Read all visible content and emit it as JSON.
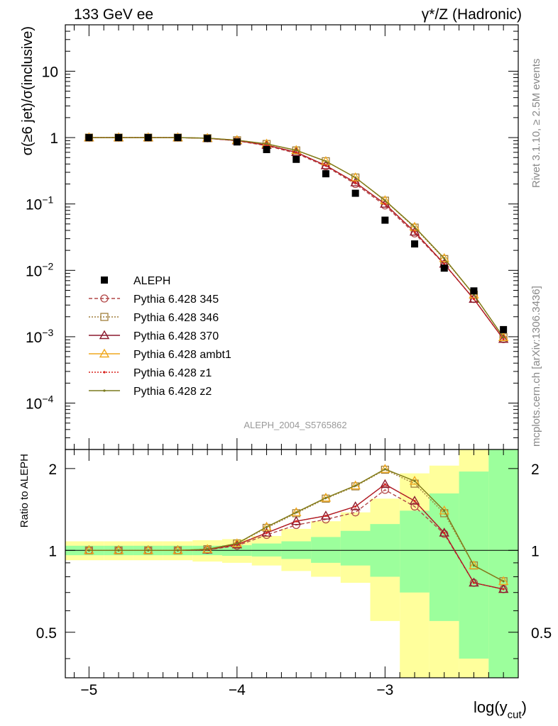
{
  "header": {
    "left": "133 GeV ee",
    "right": "γ*/Z (Hadronic)"
  },
  "side_labels": {
    "top": "Rivet 3.1.10, ≥ 2.5M events",
    "bottom": "mcplots.cern.ch [arXiv:1306.3436]"
  },
  "watermark": "ALEPH_2004_S5765862",
  "chart_data": [
    {
      "type": "line",
      "panel": "main",
      "ylabel": "σ(≥6 jet)/σ(inclusive)",
      "y_scale": "log",
      "ylim": [
        2e-05,
        50
      ],
      "xlim": [
        -5.16,
        -2.1
      ],
      "y_ticks": [
        {
          "v": 10,
          "base": "10",
          "exp": ""
        },
        {
          "v": 1,
          "base": "1",
          "exp": ""
        },
        {
          "v": 0.1,
          "base": "10",
          "exp": "−1"
        },
        {
          "v": 0.01,
          "base": "10",
          "exp": "−2"
        },
        {
          "v": 0.001,
          "base": "10",
          "exp": "−3"
        },
        {
          "v": 0.0001,
          "base": "10",
          "exp": "−4"
        }
      ],
      "x": [
        -5.0,
        -4.8,
        -4.6,
        -4.4,
        -4.2,
        -4.0,
        -3.8,
        -3.6,
        -3.4,
        -3.2,
        -3.0,
        -2.8,
        -2.6,
        -2.4,
        -2.2
      ],
      "data_series": {
        "name": "ALEPH",
        "values": [
          1.0,
          1.0,
          1.0,
          1.0,
          0.97,
          0.86,
          0.66,
          0.47,
          0.285,
          0.145,
          0.057,
          0.025,
          0.0108,
          0.0049,
          0.00128
        ]
      },
      "series": [
        {
          "name": "Pythia 6.428 345",
          "color": "#b24747",
          "dash": "5,3",
          "marker": "circle",
          "values": [
            1.0,
            1.0,
            1.0,
            1.0,
            0.975,
            0.895,
            0.755,
            0.58,
            0.37,
            0.2,
            0.095,
            0.036,
            0.0124,
            0.0037,
            0.00092
          ]
        },
        {
          "name": "Pythia 6.428 346",
          "color": "#a07f3c",
          "dash": "2,2",
          "marker": "square",
          "values": [
            1.0,
            1.0,
            1.0,
            1.0,
            0.98,
            0.91,
            0.8,
            0.64,
            0.44,
            0.25,
            0.112,
            0.044,
            0.0148,
            0.0043,
            0.00098
          ]
        },
        {
          "name": "Pythia 6.428 370",
          "color": "#8b1a2e",
          "dash": "",
          "marker": "triangle",
          "values": [
            1.0,
            1.0,
            1.0,
            1.0,
            0.975,
            0.9,
            0.77,
            0.6,
            0.38,
            0.21,
            0.1,
            0.038,
            0.0125,
            0.0037,
            0.00092
          ]
        },
        {
          "name": "Pythia 6.428 ambt1",
          "color": "#f0a81e",
          "dash": "",
          "marker": "triangle",
          "values": [
            1.0,
            1.0,
            1.0,
            1.0,
            0.98,
            0.915,
            0.805,
            0.645,
            0.44,
            0.25,
            0.113,
            0.045,
            0.0152,
            0.0043,
            0.00098
          ]
        },
        {
          "name": "Pythia 6.428 z1",
          "color": "#d9231e",
          "dash": "2,2",
          "marker": "dot",
          "values": [
            1.0,
            1.0,
            1.0,
            1.0,
            0.975,
            0.9,
            0.77,
            0.6,
            0.38,
            0.21,
            0.1,
            0.038,
            0.0125,
            0.0037,
            0.00092
          ]
        },
        {
          "name": "Pythia 6.428 z2",
          "color": "#7a7a1e",
          "dash": "",
          "marker": "dot",
          "values": [
            1.0,
            1.0,
            1.0,
            1.0,
            0.98,
            0.915,
            0.805,
            0.645,
            0.44,
            0.25,
            0.113,
            0.045,
            0.0152,
            0.0043,
            0.00098
          ]
        }
      ]
    },
    {
      "type": "line",
      "panel": "ratio",
      "ylabel": "Ratio to ALEPH",
      "xlabel_base": "log(y",
      "xlabel_sub": "cut",
      "xlabel_close": ")",
      "y_scale": "log",
      "ylim": [
        0.34,
        2.35
      ],
      "y_ticks": [
        {
          "v": 2,
          "label": "2"
        },
        {
          "v": 1,
          "label": "1"
        },
        {
          "v": 0.5,
          "label": "0.5"
        }
      ],
      "x_ticks": [
        {
          "v": -5,
          "label": "−5"
        },
        {
          "v": -4,
          "label": "−4"
        },
        {
          "v": -3,
          "label": "−3"
        }
      ],
      "band_edges": [
        -5.16,
        -4.9,
        -4.7,
        -4.5,
        -4.3,
        -4.1,
        -3.9,
        -3.7,
        -3.5,
        -3.3,
        -3.1,
        -2.9,
        -2.7,
        -2.5,
        -2.3,
        -2.1
      ],
      "band_inner": [
        [
          0.96,
          1.04
        ],
        [
          0.96,
          1.04
        ],
        [
          0.96,
          1.04
        ],
        [
          0.96,
          1.04
        ],
        [
          0.96,
          1.04
        ],
        [
          0.955,
          1.045
        ],
        [
          0.95,
          1.06
        ],
        [
          0.93,
          1.08
        ],
        [
          0.9,
          1.12
        ],
        [
          0.88,
          1.18
        ],
        [
          0.8,
          1.25
        ],
        [
          0.7,
          1.4
        ],
        [
          0.55,
          1.62
        ],
        [
          0.4,
          1.95
        ],
        [
          0.34,
          2.35
        ]
      ],
      "band_outer": [
        [
          0.92,
          1.08
        ],
        [
          0.92,
          1.08
        ],
        [
          0.92,
          1.08
        ],
        [
          0.92,
          1.08
        ],
        [
          0.91,
          1.09
        ],
        [
          0.9,
          1.1
        ],
        [
          0.88,
          1.13
        ],
        [
          0.84,
          1.2
        ],
        [
          0.8,
          1.28
        ],
        [
          0.76,
          1.38
        ],
        [
          0.55,
          1.55
        ],
        [
          0.34,
          1.92
        ],
        [
          0.34,
          2.05
        ],
        [
          0.34,
          2.35
        ],
        [
          0.34,
          2.35
        ]
      ],
      "series": [
        {
          "name": "Pythia 6.428 345",
          "values": [
            1.0,
            1.0,
            1.0,
            1.0,
            1.005,
            1.04,
            1.14,
            1.24,
            1.3,
            1.38,
            1.67,
            1.45,
            1.15,
            0.76,
            0.72
          ]
        },
        {
          "name": "Pythia 6.428 346",
          "values": [
            1.0,
            1.0,
            1.0,
            1.0,
            1.01,
            1.06,
            1.21,
            1.37,
            1.55,
            1.72,
            1.98,
            1.76,
            1.37,
            0.88,
            0.77
          ]
        },
        {
          "name": "Pythia 6.428 370",
          "values": [
            1.0,
            1.0,
            1.0,
            1.0,
            1.005,
            1.05,
            1.16,
            1.28,
            1.34,
            1.45,
            1.75,
            1.52,
            1.16,
            0.76,
            0.72
          ]
        },
        {
          "name": "Pythia 6.428 ambt1",
          "values": [
            1.0,
            1.0,
            1.0,
            1.0,
            1.01,
            1.06,
            1.22,
            1.38,
            1.56,
            1.73,
            1.99,
            1.8,
            1.4,
            0.88,
            0.77
          ]
        },
        {
          "name": "Pythia 6.428 z1",
          "values": [
            1.0,
            1.0,
            1.0,
            1.0,
            1.005,
            1.05,
            1.16,
            1.28,
            1.34,
            1.45,
            1.75,
            1.52,
            1.16,
            0.76,
            0.72
          ]
        },
        {
          "name": "Pythia 6.428 z2",
          "values": [
            1.0,
            1.0,
            1.0,
            1.0,
            1.01,
            1.06,
            1.22,
            1.38,
            1.56,
            1.73,
            1.99,
            1.8,
            1.4,
            0.88,
            0.77
          ]
        }
      ],
      "band_colors": {
        "inner": "#9cff9c",
        "outer": "#ffff9c"
      }
    }
  ]
}
